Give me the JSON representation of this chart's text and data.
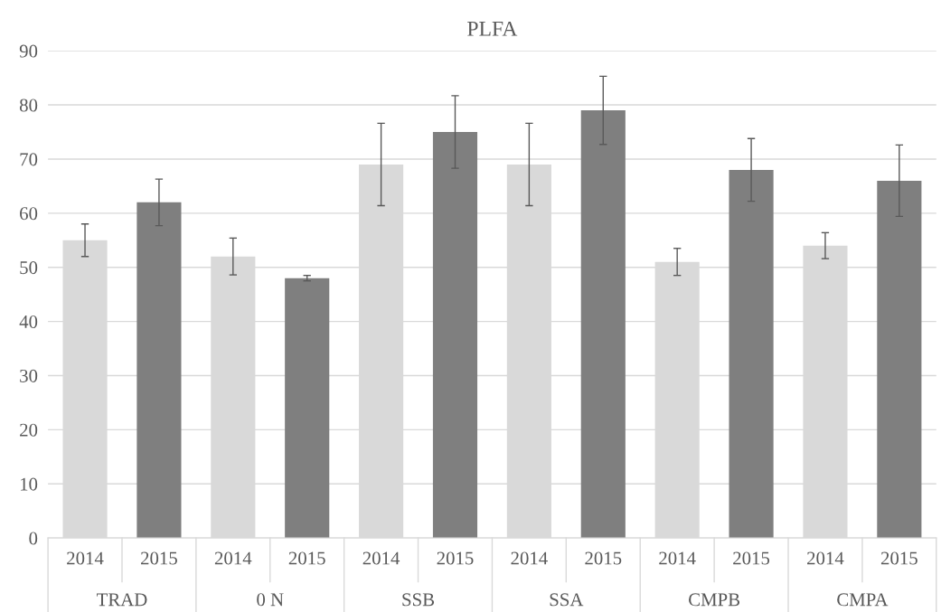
{
  "chart_data": {
    "type": "bar",
    "title": "PLFA",
    "categories": [
      "2014",
      "2015",
      "2014",
      "2015",
      "2014",
      "2015",
      "2014",
      "2015",
      "2014",
      "2015",
      "2014",
      "2015"
    ],
    "values": [
      55,
      62,
      52,
      48,
      69,
      75,
      69,
      79,
      51,
      68,
      54,
      66
    ],
    "errors": [
      3,
      4.3,
      3.4,
      0.5,
      7.6,
      6.7,
      7.6,
      6.3,
      2.5,
      5.8,
      2.4,
      6.6
    ],
    "colors": [
      "#d9d9d9",
      "#7f7f7f",
      "#d9d9d9",
      "#7f7f7f",
      "#d9d9d9",
      "#7f7f7f",
      "#d9d9d9",
      "#7f7f7f",
      "#d9d9d9",
      "#7f7f7f",
      "#d9d9d9",
      "#7f7f7f"
    ],
    "annotations": [
      "TRAD",
      "0 N",
      "SSB",
      "SSA",
      "CMPB",
      "CMPA"
    ],
    "ylim": [
      0,
      90
    ],
    "yticks": [
      0,
      10,
      20,
      30,
      40,
      50,
      60,
      70,
      80,
      90
    ],
    "grid": "y"
  }
}
